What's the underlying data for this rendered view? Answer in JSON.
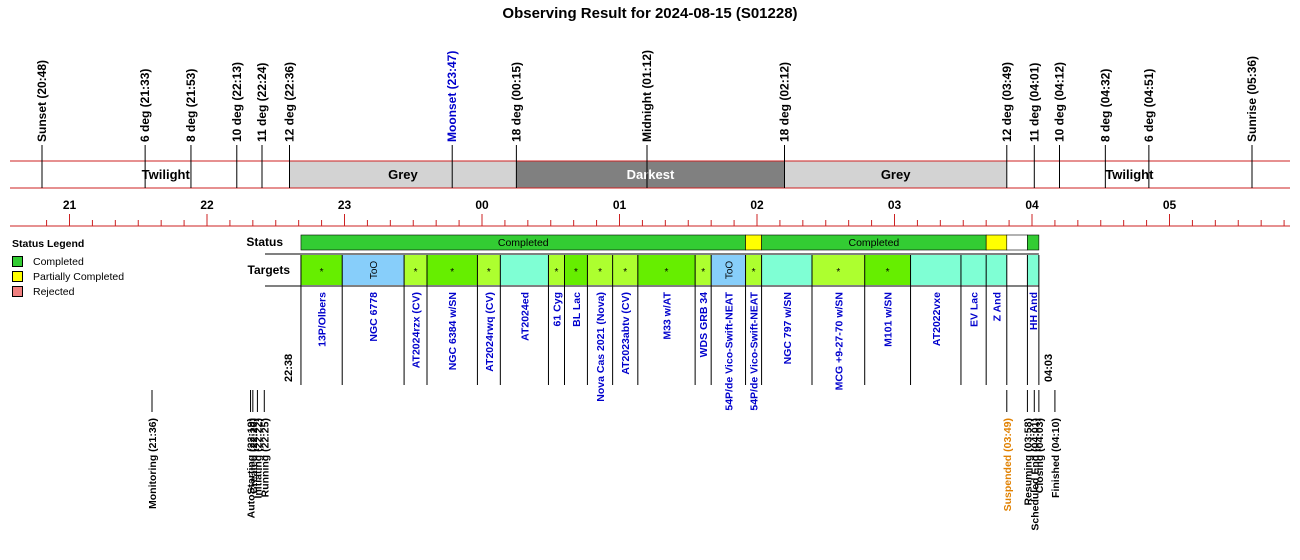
{
  "title": "Observing Result for 2024-08-15 (S01228)",
  "events": [
    {
      "label": "Sunset (20:48)",
      "t": "20:48",
      "color": "#000000"
    },
    {
      "label": "6 deg (21:33)",
      "t": "21:33",
      "color": "#000000"
    },
    {
      "label": "8 deg (21:53)",
      "t": "21:53",
      "color": "#000000"
    },
    {
      "label": "10 deg (22:13)",
      "t": "22:13",
      "color": "#000000"
    },
    {
      "label": "11 deg (22:24)",
      "t": "22:24",
      "color": "#000000"
    },
    {
      "label": "12 deg (22:36)",
      "t": "22:36",
      "color": "#000000"
    },
    {
      "label": "Moonset (23:47)",
      "t": "23:47",
      "color": "#0000cc"
    },
    {
      "label": "18 deg (00:15)",
      "t": "00:15",
      "color": "#000000"
    },
    {
      "label": "Midnight (01:12)",
      "t": "01:12",
      "color": "#000000"
    },
    {
      "label": "18 deg (02:12)",
      "t": "02:12",
      "color": "#000000"
    },
    {
      "label": "12 deg (03:49)",
      "t": "03:49",
      "color": "#000000"
    },
    {
      "label": "11 deg (04:01)",
      "t": "04:01",
      "color": "#000000"
    },
    {
      "label": "10 deg (04:12)",
      "t": "04:12",
      "color": "#000000"
    },
    {
      "label": "8 deg (04:32)",
      "t": "04:32",
      "color": "#000000"
    },
    {
      "label": "6 deg (04:51)",
      "t": "04:51",
      "color": "#000000"
    },
    {
      "label": "Sunrise (05:36)",
      "t": "05:36",
      "color": "#000000"
    }
  ],
  "bands": [
    {
      "label": "Twilight",
      "start": "20:48",
      "end": "22:36",
      "fill": "#ffffff",
      "text": "#000000"
    },
    {
      "label": "Grey",
      "start": "22:36",
      "end": "00:15",
      "fill": "#d3d3d3",
      "text": "#000000"
    },
    {
      "label": "Darkest",
      "start": "00:15",
      "end": "02:12",
      "fill": "#808080",
      "text": "#ffffff"
    },
    {
      "label": "Grey",
      "start": "02:12",
      "end": "03:49",
      "fill": "#d3d3d3",
      "text": "#000000"
    },
    {
      "label": "Twilight",
      "start": "03:49",
      "end": "05:36",
      "fill": "#ffffff",
      "text": "#000000"
    }
  ],
  "hour_labels": [
    "21",
    "22",
    "23",
    "00",
    "01",
    "02",
    "03",
    "04",
    "05"
  ],
  "legend": {
    "title": "Status Legend",
    "items": [
      {
        "label": "Completed",
        "color": "#33cc33"
      },
      {
        "label": "Partially Completed",
        "color": "#ffff00"
      },
      {
        "label": "Rejected",
        "color": "#f08080"
      }
    ]
  },
  "row_labels": {
    "status": "Status",
    "targets": "Targets"
  },
  "status": [
    {
      "label": "Completed",
      "start": "22:41",
      "end": "01:55",
      "color": "#33cc33"
    },
    {
      "label": "",
      "start": "01:55",
      "end": "02:02",
      "color": "#ffff00"
    },
    {
      "label": "Completed",
      "start": "02:02",
      "end": "03:40",
      "color": "#33cc33"
    },
    {
      "label": "",
      "start": "03:40",
      "end": "03:49",
      "color": "#ffff00"
    },
    {
      "label": "",
      "start": "03:49",
      "end": "03:58",
      "color": "#ffffff"
    },
    {
      "label": "",
      "start": "03:58",
      "end": "04:03",
      "color": "#33cc33"
    }
  ],
  "targets": [
    {
      "name": "13P/Olbers",
      "start": "22:41",
      "end": "22:59",
      "color": "#66ee00",
      "mark": "*"
    },
    {
      "name": "NGC 6778",
      "start": "22:59",
      "end": "23:26",
      "color": "#87cefa",
      "mark": "ToO"
    },
    {
      "name": "AT2024rzx (CV)",
      "start": "23:26",
      "end": "23:36",
      "color": "#adff2f",
      "mark": "*"
    },
    {
      "name": "NGC 6384 w/SN",
      "start": "23:36",
      "end": "23:58",
      "color": "#66ee00",
      "mark": "*"
    },
    {
      "name": "AT2024rwq (CV)",
      "start": "23:58",
      "end": "00:08",
      "color": "#adff2f",
      "mark": "*"
    },
    {
      "name": "AT2024ed",
      "start": "00:08",
      "end": "00:29",
      "color": "#7fffd4",
      "mark": ""
    },
    {
      "name": "61 Cyg",
      "start": "00:29",
      "end": "00:36",
      "color": "#adff2f",
      "mark": "*"
    },
    {
      "name": "BL Lac",
      "start": "00:36",
      "end": "00:46",
      "color": "#66ee00",
      "mark": "*"
    },
    {
      "name": "Nova Cas 2021 (Nova)",
      "start": "00:46",
      "end": "00:57",
      "color": "#adff2f",
      "mark": "*"
    },
    {
      "name": "AT2023abtv (CV)",
      "start": "00:57",
      "end": "01:08",
      "color": "#adff2f",
      "mark": "*"
    },
    {
      "name": "M33  w/AT",
      "start": "01:08",
      "end": "01:33",
      "color": "#66ee00",
      "mark": "*"
    },
    {
      "name": "WDS GRB 34",
      "start": "01:33",
      "end": "01:40",
      "color": "#adff2f",
      "mark": "*"
    },
    {
      "name": "54P/de Vico-Swift-NEAT",
      "start": "01:40",
      "end": "01:55",
      "color": "#87cefa",
      "mark": "ToO"
    },
    {
      "name": "54P/de Vico-Swift-NEAT",
      "start": "01:55",
      "end": "02:02",
      "color": "#adff2f",
      "mark": "*"
    },
    {
      "name": "NGC 797  w/SN",
      "start": "02:02",
      "end": "02:24",
      "color": "#7fffd4",
      "mark": ""
    },
    {
      "name": "MCG +9-27-70 w/SN",
      "start": "02:24",
      "end": "02:47",
      "color": "#adff2f",
      "mark": "*"
    },
    {
      "name": "M101 w/SN",
      "start": "02:47",
      "end": "03:07",
      "color": "#66ee00",
      "mark": "*"
    },
    {
      "name": "AT2022vxe",
      "start": "03:07",
      "end": "03:29",
      "color": "#7fffd4",
      "mark": ""
    },
    {
      "name": "EV Lac",
      "start": "03:29",
      "end": "03:40",
      "color": "#7fffd4",
      "mark": ""
    },
    {
      "name": "Z And",
      "start": "03:40",
      "end": "03:49",
      "color": "#7fffd4",
      "mark": ""
    },
    {
      "name": "",
      "start": "03:49",
      "end": "03:58",
      "color": "#ffffff",
      "mark": ""
    },
    {
      "name": "HH And",
      "start": "03:58",
      "end": "04:03",
      "color": "#7fffd4",
      "mark": ""
    }
  ],
  "run_start": "22:38",
  "run_end": "04:03",
  "sys_events": [
    {
      "label": "Monitoring (21:36)",
      "t": "21:36",
      "color": "#000000"
    },
    {
      "label": "AutoStarting (22:19)",
      "t": "22:19",
      "color": "#000000"
    },
    {
      "label": "Created (22:20)",
      "t": "22:20",
      "color": "#000000"
    },
    {
      "label": "Initiating (22:22)",
      "t": "22:22",
      "color": "#000000"
    },
    {
      "label": "Running (22:25)",
      "t": "22:25",
      "color": "#000000"
    },
    {
      "label": "Suspended (03:49)",
      "t": "03:49",
      "color": "#e08000"
    },
    {
      "label": "Resuming (03:58)",
      "t": "03:58",
      "color": "#000000"
    },
    {
      "label": "Scheduled End (04:01)",
      "t": "04:01",
      "color": "#000000"
    },
    {
      "label": "Closing (04:03)",
      "t": "04:03",
      "color": "#000000"
    },
    {
      "label": "Finished (04:10)",
      "t": "04:10",
      "color": "#000000"
    }
  ]
}
